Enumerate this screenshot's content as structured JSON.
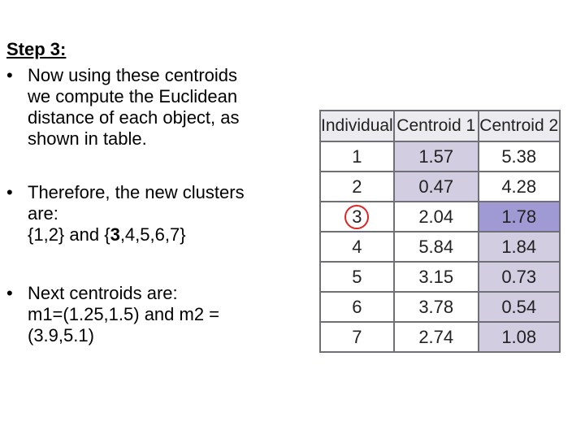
{
  "step_title": "Step 3:",
  "bullets": [
    {
      "lines": [
        "Now using these centroids",
        "we compute the Euclidean",
        "distance of each object, as",
        "shown in table."
      ]
    },
    {
      "lines": [
        "Therefore, the new clusters",
        "are:"
      ],
      "clusters_prefix": "{1,2} and {",
      "clusters_bold": "3",
      "clusters_suffix": ",4,5,6,7}"
    },
    {
      "lines": [
        "Next centroids are:",
        "m1=(1.25,1.5) and m2 =",
        "(3.9,5.1)"
      ]
    }
  ],
  "bullet_symbol": "•",
  "table": {
    "headers": [
      "Individual",
      "Centroid 1",
      "Centroid 2"
    ],
    "rows": [
      {
        "individual": "1",
        "c1": "1.57",
        "c2": "5.38",
        "highlight": "c1"
      },
      {
        "individual": "2",
        "c1": "0.47",
        "c2": "4.28",
        "highlight": "c1"
      },
      {
        "individual": "3",
        "c1": "2.04",
        "c2": "1.78",
        "highlight": "c2-strong",
        "circled": true
      },
      {
        "individual": "4",
        "c1": "5.84",
        "c2": "1.84",
        "highlight": "c2"
      },
      {
        "individual": "5",
        "c1": "3.15",
        "c2": "0.73",
        "highlight": "c2"
      },
      {
        "individual": "6",
        "c1": "3.78",
        "c2": "0.54",
        "highlight": "c2"
      },
      {
        "individual": "7",
        "c1": "2.74",
        "c2": "1.08",
        "highlight": "c2"
      }
    ],
    "colors": {
      "highlight": "#d2cde0",
      "highlight_strong": "#9f9ad4",
      "circle": "#e02424",
      "border": "#6f6f78"
    }
  }
}
